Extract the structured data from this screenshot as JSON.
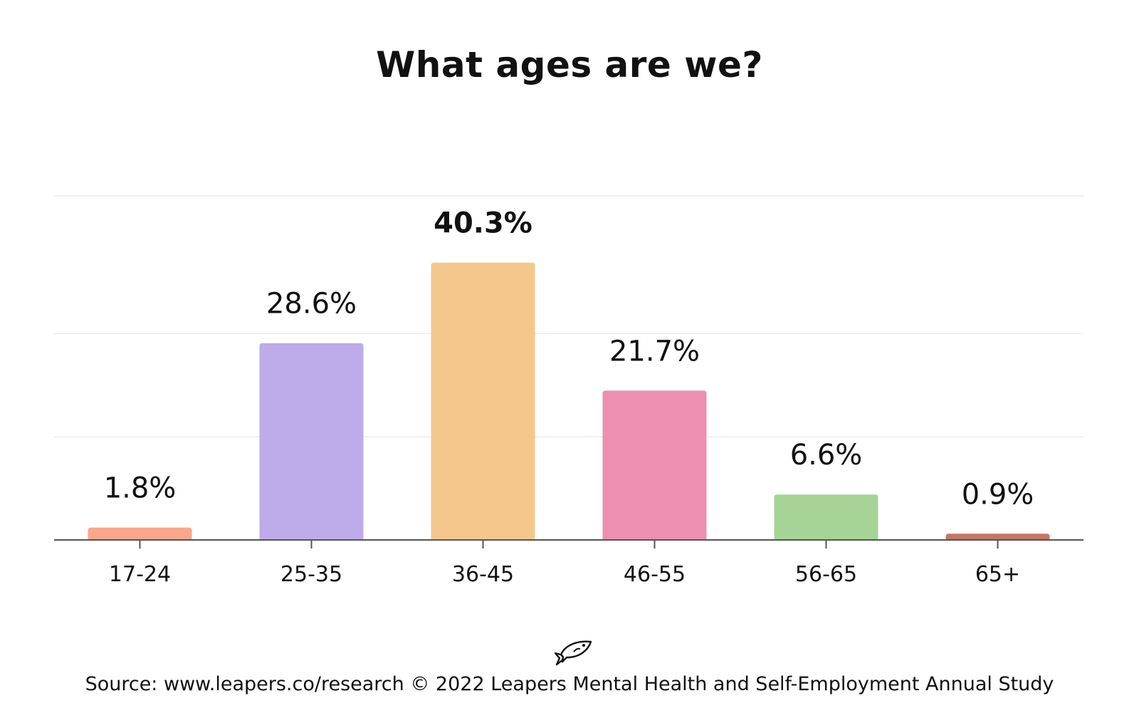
{
  "chart_data": {
    "type": "bar",
    "title": "What ages are we?",
    "categories": [
      "17-24",
      "25-35",
      "36-45",
      "46-55",
      "56-65",
      "65+"
    ],
    "values": [
      1.8,
      28.6,
      40.3,
      21.7,
      6.6,
      0.9
    ],
    "value_labels": [
      "1.8%",
      "28.6%",
      "40.3%",
      "21.7%",
      "6.6%",
      "0.9%"
    ],
    "colors": [
      "#F9A68A",
      "#BEABEA",
      "#F4C88C",
      "#EC8FB0",
      "#A5D496",
      "#C47565"
    ],
    "highlight_max": true,
    "ylim": [
      0,
      50
    ],
    "grid": true,
    "legend": "none"
  },
  "footer": {
    "logo_icon": "fish-icon",
    "source_text": "Source: www.leapers.co/research © 2022 Leapers Mental Health and Self-Employment Annual Study"
  }
}
